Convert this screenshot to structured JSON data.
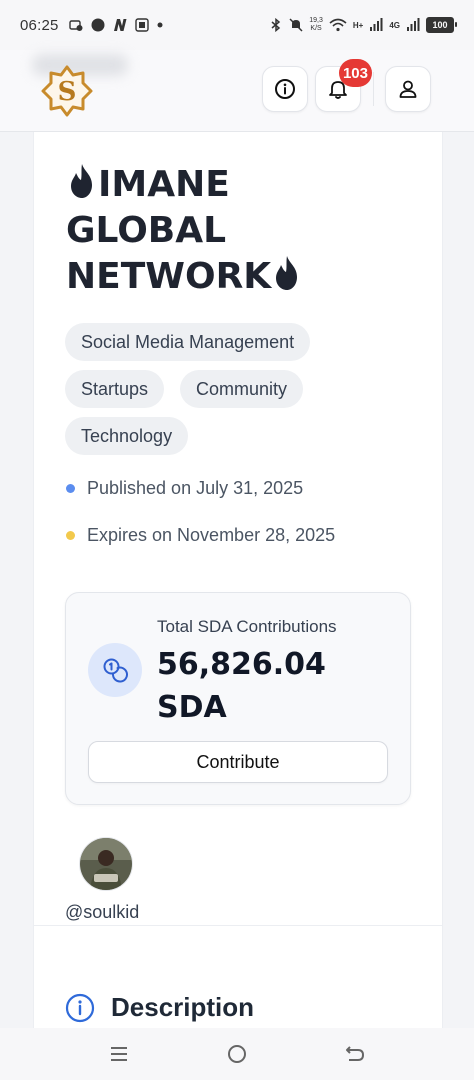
{
  "status_bar": {
    "time": "06:25",
    "net_speed_value": "19,3",
    "net_speed_unit": "K/S",
    "network_type": "4G",
    "h_plus": "H+",
    "battery": "100",
    "left_icons": [
      "call-forward-icon",
      "circle-icon",
      "n-app-icon",
      "screenshot-icon",
      "dot-icon"
    ],
    "right_icons": [
      "bluetooth-icon",
      "mute-icon",
      "wifi-icon",
      "signal-icon",
      "signal-icon",
      "battery-icon"
    ]
  },
  "header": {
    "info_icon": "info-icon",
    "notifications_icon": "bell-icon",
    "notifications_count": "103",
    "profile_icon": "user-icon",
    "logo_icon": "star-s-logo"
  },
  "post": {
    "title_line1": "IMANE",
    "title_line2": "GLOBAL",
    "title_line3": "NETWORK",
    "title_icon": "fire-icon",
    "tags": [
      "Social Media Management",
      "Startups",
      "Community",
      "Technology"
    ],
    "published": "Published on July 31, 2025",
    "expires": "Expires on November 28, 2025",
    "published_dot_color": "#5b8def",
    "expires_dot_color": "#f2c94c"
  },
  "contributions": {
    "label": "Total SDA Contributions",
    "amount": "56,826.04",
    "unit": "SDA",
    "button_label": "Contribute",
    "icon": "coins-icon"
  },
  "author": {
    "username": "@soulkid"
  },
  "description": {
    "title": "Description",
    "icon": "info-circle-icon"
  },
  "nav_bar": {
    "icons": [
      "menu-icon",
      "home-circle-icon",
      "back-icon"
    ]
  }
}
